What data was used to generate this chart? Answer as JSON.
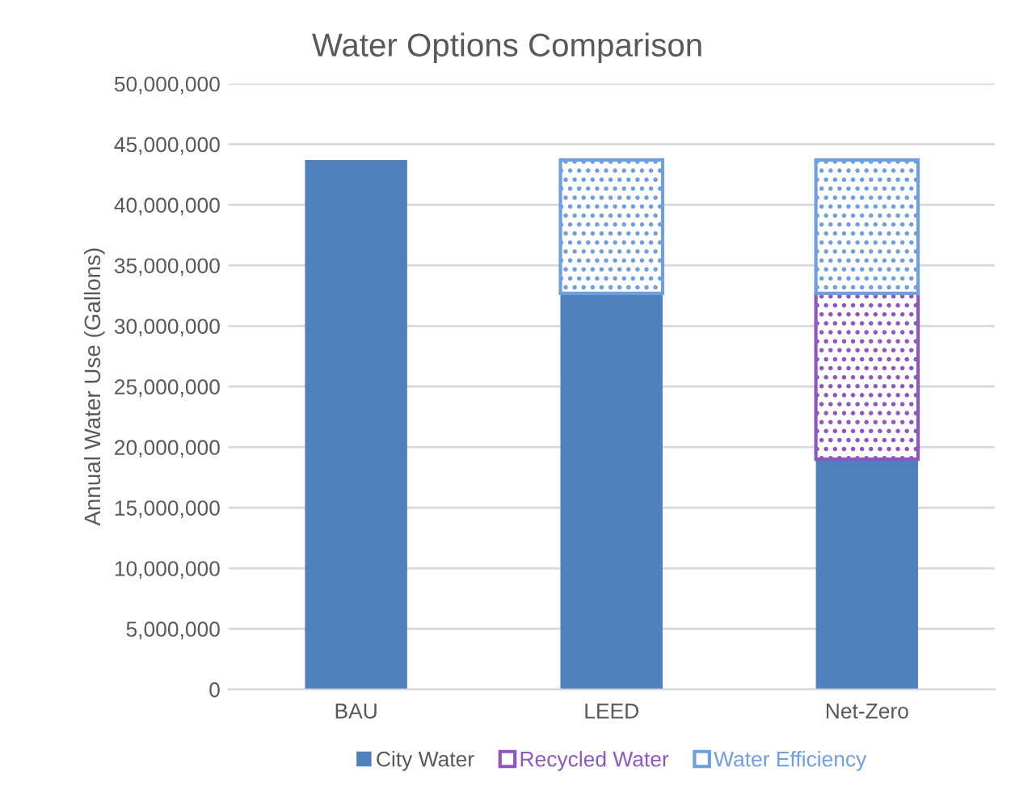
{
  "chart_data": {
    "type": "bar",
    "title": "Water Options Comparison",
    "ylabel": "Annual Water Use (Gallons)",
    "categories": [
      "BAU",
      "LEED",
      "Net-Zero"
    ],
    "stacked": true,
    "series": [
      {
        "name": "City Water",
        "color": "#4f81bd",
        "values": [
          43700000,
          32700000,
          19000000
        ]
      },
      {
        "name": "Recycled Water",
        "color": "#8e56c0",
        "values": [
          0,
          0,
          13700000
        ]
      },
      {
        "name": "Water Efficiency",
        "color": "#6f9fe0",
        "values": [
          0,
          11000000,
          11000000
        ]
      }
    ],
    "ylim": [
      0,
      50000000
    ],
    "yticks": [
      0,
      {
        "value": 5000000,
        "label": "5,000,000"
      },
      {
        "value": 10000000,
        "label": "10,000,000"
      },
      {
        "value": 15000000,
        "label": "15,000,000"
      },
      {
        "value": 20000000,
        "label": "20,000,000"
      },
      {
        "value": 25000000,
        "label": "25,000,000"
      },
      {
        "value": 30000000,
        "label": "30,000,000"
      },
      {
        "value": 35000000,
        "label": "35,000,000"
      },
      {
        "value": 40000000,
        "label": "40,000,000"
      },
      {
        "value": 45000000,
        "label": "45,000,000"
      },
      {
        "value": 50000000,
        "label": "50,000,000"
      }
    ],
    "grid": "y",
    "legend": "bottom"
  }
}
